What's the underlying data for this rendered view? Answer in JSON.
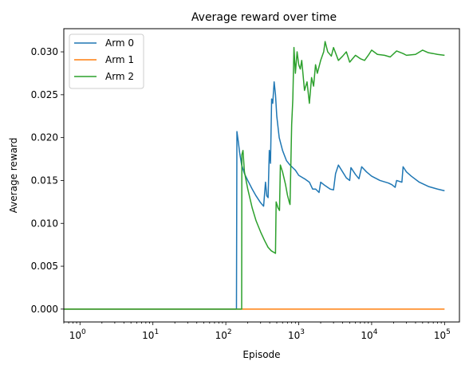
{
  "chart_data": {
    "type": "line",
    "title": "Average reward over time",
    "xlabel": "Episode",
    "ylabel": "Average reward",
    "xscale": "log",
    "xlim": [
      0.6,
      160000
    ],
    "ylim": [
      -0.0015,
      0.0327
    ],
    "x_ticks": [
      {
        "value": 1,
        "base": "10",
        "exp": "0"
      },
      {
        "value": 10,
        "base": "10",
        "exp": "1"
      },
      {
        "value": 100,
        "base": "10",
        "exp": "2"
      },
      {
        "value": 1000,
        "base": "10",
        "exp": "3"
      },
      {
        "value": 10000,
        "base": "10",
        "exp": "4"
      },
      {
        "value": 100000,
        "base": "10",
        "exp": "5"
      }
    ],
    "y_ticks": [
      {
        "value": 0.0,
        "label": "0.000"
      },
      {
        "value": 0.005,
        "label": "0.005"
      },
      {
        "value": 0.01,
        "label": "0.010"
      },
      {
        "value": 0.015,
        "label": "0.015"
      },
      {
        "value": 0.02,
        "label": "0.020"
      },
      {
        "value": 0.025,
        "label": "0.025"
      },
      {
        "value": 0.03,
        "label": "0.030"
      }
    ],
    "grid": false,
    "legend": {
      "position": "top-left"
    },
    "series": [
      {
        "name": "Arm 0",
        "color": "#1f77b4",
        "points": [
          [
            0.6,
            0
          ],
          [
            140,
            0
          ],
          [
            142,
            0.0207
          ],
          [
            148,
            0.0196
          ],
          [
            155,
            0.0182
          ],
          [
            165,
            0.0168
          ],
          [
            180,
            0.0158
          ],
          [
            200,
            0.015
          ],
          [
            230,
            0.014
          ],
          [
            260,
            0.0132
          ],
          [
            300,
            0.0124
          ],
          [
            330,
            0.012
          ],
          [
            350,
            0.0148
          ],
          [
            365,
            0.0132
          ],
          [
            380,
            0.013
          ],
          [
            395,
            0.0185
          ],
          [
            410,
            0.017
          ],
          [
            425,
            0.0245
          ],
          [
            440,
            0.024
          ],
          [
            460,
            0.0265
          ],
          [
            480,
            0.025
          ],
          [
            500,
            0.0225
          ],
          [
            540,
            0.02
          ],
          [
            600,
            0.0185
          ],
          [
            680,
            0.0173
          ],
          [
            760,
            0.0168
          ],
          [
            850,
            0.0164
          ],
          [
            900,
            0.0162
          ],
          [
            1000,
            0.0156
          ],
          [
            1200,
            0.0152
          ],
          [
            1400,
            0.0148
          ],
          [
            1550,
            0.014
          ],
          [
            1700,
            0.014
          ],
          [
            1800,
            0.0138
          ],
          [
            1900,
            0.0136
          ],
          [
            2000,
            0.0148
          ],
          [
            2300,
            0.0144
          ],
          [
            2700,
            0.014
          ],
          [
            3000,
            0.0139
          ],
          [
            3200,
            0.0158
          ],
          [
            3500,
            0.0168
          ],
          [
            4000,
            0.016
          ],
          [
            4500,
            0.0153
          ],
          [
            5000,
            0.015
          ],
          [
            5200,
            0.0165
          ],
          [
            6000,
            0.0157
          ],
          [
            6700,
            0.0152
          ],
          [
            7300,
            0.0166
          ],
          [
            8500,
            0.016
          ],
          [
            10000,
            0.0155
          ],
          [
            13000,
            0.015
          ],
          [
            17000,
            0.0147
          ],
          [
            19000,
            0.0145
          ],
          [
            21000,
            0.0142
          ],
          [
            22000,
            0.015
          ],
          [
            26000,
            0.0148
          ],
          [
            27000,
            0.0166
          ],
          [
            30000,
            0.016
          ],
          [
            35000,
            0.0155
          ],
          [
            45000,
            0.0148
          ],
          [
            60000,
            0.0143
          ],
          [
            80000,
            0.014
          ],
          [
            100000,
            0.0138
          ]
        ]
      },
      {
        "name": "Arm 1",
        "color": "#ff7f0e",
        "points": [
          [
            0.6,
            0
          ],
          [
            100000,
            0
          ]
        ]
      },
      {
        "name": "Arm 2",
        "color": "#2ca02c",
        "points": [
          [
            0.6,
            0
          ],
          [
            165,
            0
          ],
          [
            166,
            0.018
          ],
          [
            172,
            0.0185
          ],
          [
            180,
            0.016
          ],
          [
            200,
            0.014
          ],
          [
            230,
            0.0118
          ],
          [
            260,
            0.0103
          ],
          [
            300,
            0.009
          ],
          [
            340,
            0.008
          ],
          [
            380,
            0.0072
          ],
          [
            420,
            0.0068
          ],
          [
            460,
            0.0066
          ],
          [
            480,
            0.0065
          ],
          [
            490,
            0.0125
          ],
          [
            520,
            0.0118
          ],
          [
            545,
            0.0115
          ],
          [
            560,
            0.0168
          ],
          [
            600,
            0.016
          ],
          [
            660,
            0.0145
          ],
          [
            700,
            0.0133
          ],
          [
            740,
            0.0125
          ],
          [
            760,
            0.0122
          ],
          [
            800,
            0.0215
          ],
          [
            830,
            0.0245
          ],
          [
            860,
            0.0305
          ],
          [
            900,
            0.0275
          ],
          [
            950,
            0.03
          ],
          [
            1000,
            0.0285
          ],
          [
            1050,
            0.028
          ],
          [
            1100,
            0.029
          ],
          [
            1200,
            0.0255
          ],
          [
            1300,
            0.0265
          ],
          [
            1400,
            0.024
          ],
          [
            1500,
            0.027
          ],
          [
            1600,
            0.026
          ],
          [
            1700,
            0.0285
          ],
          [
            1800,
            0.0275
          ],
          [
            2000,
            0.029
          ],
          [
            2200,
            0.03
          ],
          [
            2300,
            0.0312
          ],
          [
            2500,
            0.03
          ],
          [
            2800,
            0.0295
          ],
          [
            3000,
            0.0305
          ],
          [
            3500,
            0.029
          ],
          [
            4000,
            0.0295
          ],
          [
            4500,
            0.03
          ],
          [
            5000,
            0.0288
          ],
          [
            6000,
            0.0296
          ],
          [
            7000,
            0.0292
          ],
          [
            8000,
            0.029
          ],
          [
            9000,
            0.0296
          ],
          [
            10000,
            0.0302
          ],
          [
            12000,
            0.0297
          ],
          [
            15000,
            0.0296
          ],
          [
            18000,
            0.0294
          ],
          [
            22000,
            0.0301
          ],
          [
            27000,
            0.0298
          ],
          [
            30000,
            0.0296
          ],
          [
            40000,
            0.0297
          ],
          [
            50000,
            0.0302
          ],
          [
            60000,
            0.0299
          ],
          [
            70000,
            0.0298
          ],
          [
            80000,
            0.0297
          ],
          [
            100000,
            0.0296
          ]
        ]
      }
    ]
  }
}
